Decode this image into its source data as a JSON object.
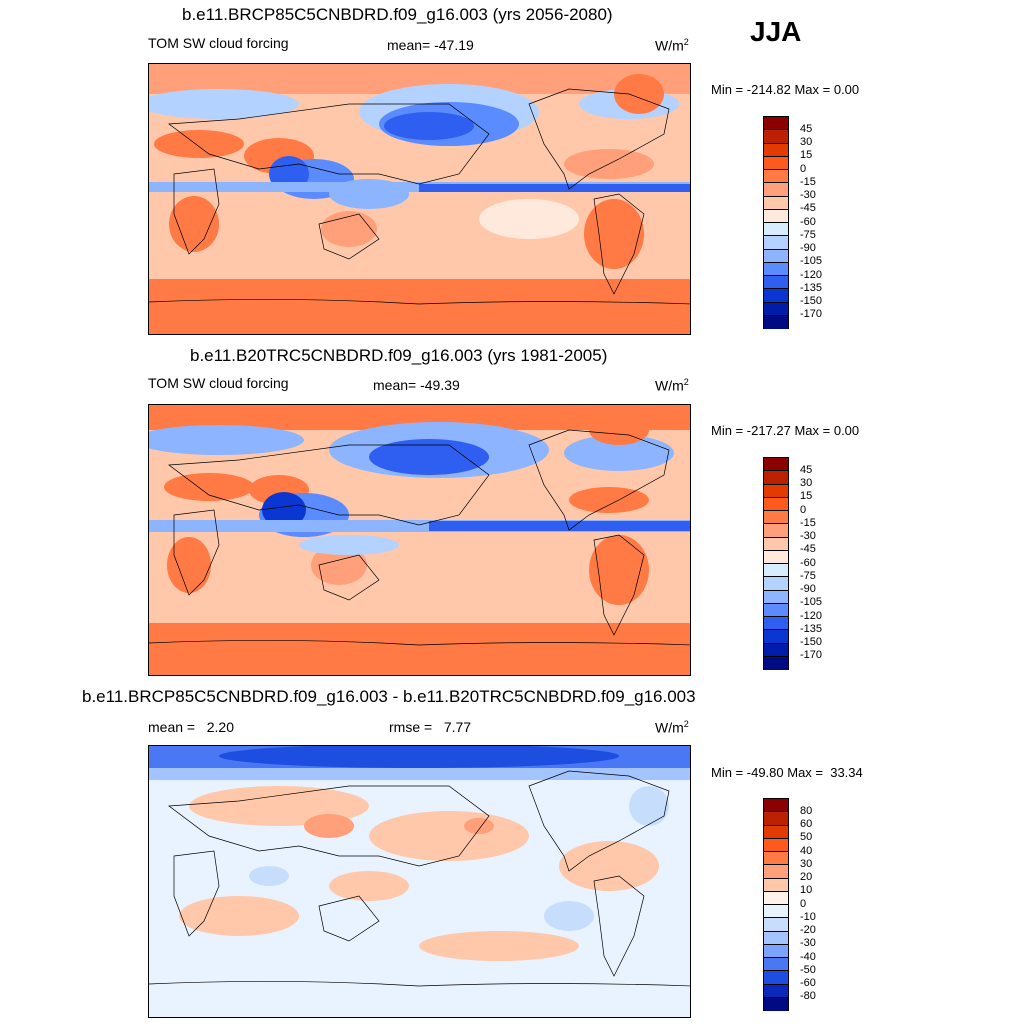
{
  "season": "JJA",
  "panels": [
    {
      "title": "b.e11.BRCP85C5CNBDRD.f09_g16.003 (yrs 2056-2080)",
      "left_label": "TOM SW cloud forcing",
      "mean_label": "mean= -47.19",
      "units": "W/m",
      "units_sup": "2",
      "minmax": "Min = -214.82 Max =   0.00",
      "colorbar": {
        "labels": [
          "45",
          "30",
          "15",
          "0",
          "-15",
          "-30",
          "-45",
          "-60",
          "-75",
          "-90",
          "-105",
          "-120",
          "-135",
          "-150",
          "-170"
        ],
        "colors": [
          "#8b0000",
          "#bb2000",
          "#e23a00",
          "#ff5a1e",
          "#ff7a45",
          "#ffa07a",
          "#ffc8aa",
          "#ffe9dc",
          "#d8ecff",
          "#b4d2ff",
          "#8cb4ff",
          "#5a8cff",
          "#2e5ff0",
          "#0a37d2",
          "#001cac",
          "#000a82"
        ]
      }
    },
    {
      "title": "b.e11.B20TRC5CNBDRD.f09_g16.003 (yrs 1981-2005)",
      "left_label": "TOM SW cloud forcing",
      "mean_label": "mean= -49.39",
      "units": "W/m",
      "units_sup": "2",
      "minmax": "Min = -217.27 Max =   0.00",
      "colorbar": {
        "labels": [
          "45",
          "30",
          "15",
          "0",
          "-15",
          "-30",
          "-45",
          "-60",
          "-75",
          "-90",
          "-105",
          "-120",
          "-135",
          "-150",
          "-170"
        ],
        "colors": [
          "#8b0000",
          "#bb2000",
          "#e23a00",
          "#ff5a1e",
          "#ff7a45",
          "#ffa07a",
          "#ffc8aa",
          "#ffe9dc",
          "#d8ecff",
          "#b4d2ff",
          "#8cb4ff",
          "#5a8cff",
          "#2e5ff0",
          "#0a37d2",
          "#001cac",
          "#000a82"
        ]
      }
    },
    {
      "title": "b.e11.BRCP85C5CNBDRD.f09_g16.003 - b.e11.B20TRC5CNBDRD.f09_g16.003",
      "mean_label": "mean =   2.20",
      "rmse_label": "rmse =   7.77",
      "units": "W/m",
      "units_sup": "2",
      "minmax": "Min = -49.80 Max =  33.34",
      "colorbar": {
        "labels": [
          "80",
          "60",
          "50",
          "40",
          "30",
          "20",
          "10",
          "0",
          "-10",
          "-20",
          "-30",
          "-40",
          "-50",
          "-60",
          "-80"
        ],
        "colors": [
          "#8b0000",
          "#bb2000",
          "#e23a00",
          "#ff5a1e",
          "#ff7a45",
          "#ffa07a",
          "#ffc8aa",
          "#fff3ec",
          "#e8f3ff",
          "#c6defc",
          "#a4c4ff",
          "#7aa4ff",
          "#4a78f5",
          "#1e4ee0",
          "#0a28bb",
          "#000a82"
        ]
      }
    }
  ]
}
